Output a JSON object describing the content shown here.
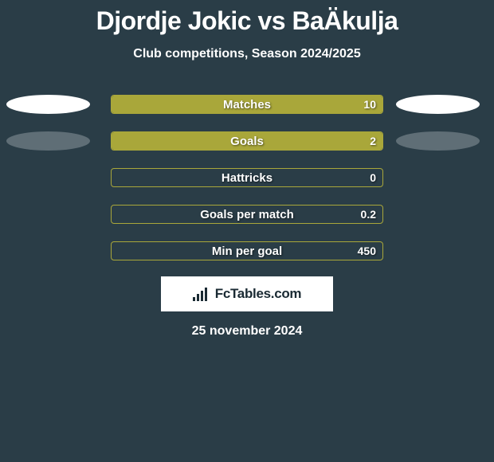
{
  "title": "Djordje Jokic vs BaÄkulja",
  "subtitle": "Club competitions, Season 2024/2025",
  "bar_border_color": "#a9a73a",
  "bar_fill_color": "#a9a73a",
  "background_color": "#2a3d47",
  "ellipse_white": "#ffffff",
  "ellipse_grey": "#5f6e76",
  "stats": [
    {
      "label": "Matches",
      "value": "10",
      "fill_pct": 100,
      "left_ellipse": "white",
      "right_ellipse": "white"
    },
    {
      "label": "Goals",
      "value": "2",
      "fill_pct": 100,
      "left_ellipse": "grey",
      "right_ellipse": "grey"
    },
    {
      "label": "Hattricks",
      "value": "0",
      "fill_pct": 0,
      "left_ellipse": null,
      "right_ellipse": null
    },
    {
      "label": "Goals per match",
      "value": "0.2",
      "fill_pct": 0,
      "left_ellipse": null,
      "right_ellipse": null
    },
    {
      "label": "Min per goal",
      "value": "450",
      "fill_pct": 0,
      "left_ellipse": null,
      "right_ellipse": null
    }
  ],
  "logo_text": "FcTables.com",
  "date": "25 november 2024"
}
